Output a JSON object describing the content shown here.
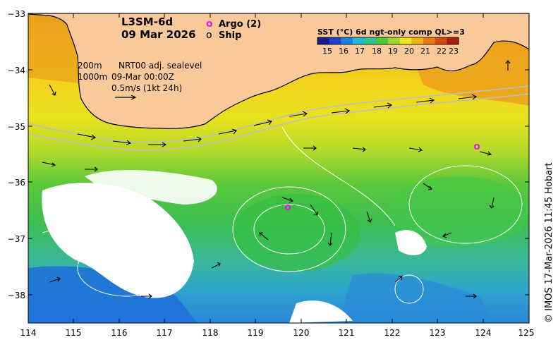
{
  "header": {
    "product": "L3SM-6d",
    "date": "09 Mar 2026"
  },
  "legend": {
    "argo_marker": "o",
    "argo_label": "Argo (2)",
    "ship_marker": "o",
    "ship_label": "Ship",
    "argo_color": "#e020e0"
  },
  "colorbar": {
    "title": "SST (°C) 6d ngt-only comp QL>=3",
    "ticks": [
      "15",
      "16",
      "17",
      "18",
      "19",
      "20",
      "21",
      "22",
      "23"
    ],
    "colors": [
      "#1a1a8c",
      "#1f3fd0",
      "#1e7ee0",
      "#22b8d8",
      "#2ec48a",
      "#4cc83a",
      "#9bd62a",
      "#e8e61e",
      "#f0b418",
      "#e87a14",
      "#d24a10",
      "#a8200c"
    ]
  },
  "annotations": {
    "contour_200": "200m",
    "contour_1000": "1000m",
    "sealevel": "NRT00 adj. sealevel",
    "time": "09-Mar 00:00Z",
    "scale": "0.5m/s (1kt 24h)"
  },
  "axes": {
    "y_labels": [
      "−33",
      "−34",
      "−35",
      "−36",
      "−37",
      "−38"
    ],
    "x_labels": [
      "114",
      "115",
      "116",
      "117",
      "118",
      "119",
      "120",
      "121",
      "122",
      "123",
      "124",
      "125"
    ],
    "lon_range": [
      114,
      125
    ],
    "lat_range": [
      -38.5,
      -33
    ]
  },
  "argo_floats": [
    {
      "lon": 123.85,
      "lat": -35.35,
      "marker": "o"
    },
    {
      "lon": 119.75,
      "lat": -36.45,
      "marker": "o"
    }
  ],
  "credit": "© IMOS 17-Mar-2026 11:45 Hobart",
  "colors": {
    "land": "#f9c99a",
    "coast": "#000000",
    "warm_band": "#f2c21e",
    "mid": "#c8e02a",
    "green": "#3fc34a",
    "cool": "#2fb2c8",
    "blue": "#1c78d8",
    "cloud": "#ffffff"
  }
}
